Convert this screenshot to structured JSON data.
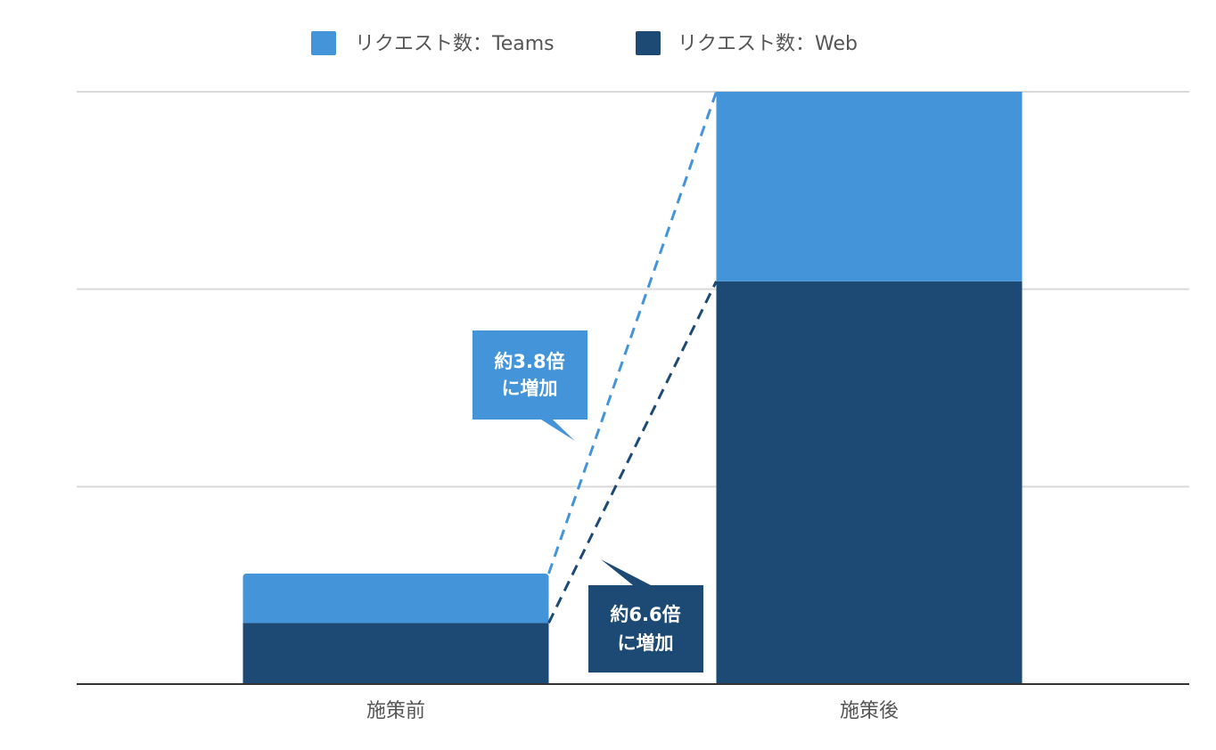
{
  "colors": {
    "teams": "#4494DA",
    "web": "#1C4A75",
    "grid": "#D9D9D9",
    "axis": "#333333"
  },
  "chart_data": {
    "type": "bar",
    "stacked": true,
    "categories": [
      "施策前",
      "施策後"
    ],
    "series": [
      {
        "name": "リクエスト数：Web",
        "values": [
          0.31,
          2.04
        ]
      },
      {
        "name": "リクエスト数：Teams",
        "values": [
          0.25,
          0.96
        ]
      }
    ],
    "ylim": [
      0,
      3
    ],
    "y_tick_labels_shown": false,
    "grid": true,
    "legend_position": "top",
    "annotations": [
      {
        "text_line1": "約3.8倍",
        "text_line2": "に増加",
        "series": "リクエスト数：Teams",
        "color": "#4494DA"
      },
      {
        "text_line1": "約6.6倍",
        "text_line2": "に増加",
        "series": "リクエスト数：Web",
        "color": "#1C4A75"
      }
    ]
  }
}
